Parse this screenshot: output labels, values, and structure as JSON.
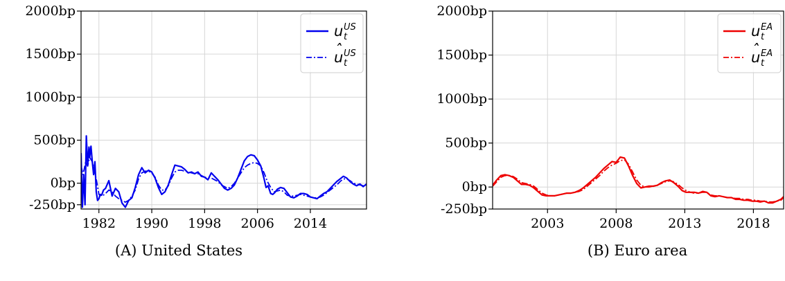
{
  "chart_data": [
    {
      "type": "line",
      "caption": "(A) United States",
      "ylim": [
        -300,
        2000
      ],
      "yticks": [
        2000,
        1500,
        1000,
        500,
        0,
        -250
      ],
      "ytick_labels": [
        "2000bp",
        "1500bp",
        "1000bp",
        "500bp",
        "0bp",
        "-250bp"
      ],
      "xlim": [
        1979.3,
        2022.5
      ],
      "xticks": [
        1982,
        1990,
        1998,
        2006,
        2014
      ],
      "xtick_labels": [
        "1982",
        "1990",
        "1998",
        "2006",
        "2014"
      ],
      "grid": true,
      "legend_position": "top-right",
      "legend": [
        {
          "base": "u",
          "sup": "US",
          "sub": "t",
          "hat": false,
          "style": "solid"
        },
        {
          "base": "u",
          "sup": "US",
          "sub": "t",
          "hat": true,
          "style": "dashdot"
        }
      ],
      "color": "#0000ee",
      "series": [
        {
          "style": "solid",
          "x": [
            1979.3,
            1979.5,
            1979.7,
            1979.9,
            1980.1,
            1980.3,
            1980.5,
            1980.6,
            1980.8,
            1981.0,
            1981.2,
            1981.4,
            1981.6,
            1981.8,
            1982.0,
            1982.2,
            1982.4,
            1982.7,
            1983.0,
            1983.5,
            1984.0,
            1984.5,
            1985.0,
            1985.5,
            1986.0,
            1986.5,
            1987.0,
            1987.5,
            1988.0,
            1988.5,
            1989.0,
            1989.5,
            1990.0,
            1990.5,
            1991.0,
            1991.5,
            1992.0,
            1992.5,
            1993.0,
            1993.5,
            1994.0,
            1994.5,
            1995.0,
            1995.5,
            1996.0,
            1996.5,
            1997.0,
            1997.5,
            1998.0,
            1998.5,
            1999.0,
            1999.5,
            2000.0,
            2000.5,
            2001.0,
            2001.5,
            2002.0,
            2002.5,
            2003.0,
            2003.5,
            2004.0,
            2004.5,
            2005.0,
            2005.5,
            2006.0,
            2006.5,
            2007.0,
            2007.3,
            2007.6,
            2008.0,
            2008.3,
            2008.6,
            2009.0,
            2009.5,
            2010.0,
            2010.5,
            2011.0,
            2011.5,
            2012.0,
            2012.5,
            2013.0,
            2013.5,
            2014.0,
            2014.5,
            2015.0,
            2015.5,
            2016.0,
            2016.5,
            2017.0,
            2017.5,
            2018.0,
            2018.5,
            2019.0,
            2019.5,
            2020.0,
            2020.5,
            2021.0,
            2021.5,
            2022.0,
            2022.5
          ],
          "y": [
            350,
            -280,
            100,
            -250,
            550,
            200,
            420,
            300,
            430,
            250,
            100,
            250,
            -100,
            -200,
            -180,
            -130,
            -140,
            -80,
            -60,
            30,
            -150,
            -60,
            -100,
            -230,
            -280,
            -200,
            -170,
            -50,
            100,
            180,
            120,
            150,
            130,
            60,
            -50,
            -130,
            -100,
            -20,
            100,
            210,
            200,
            190,
            160,
            120,
            130,
            110,
            130,
            80,
            70,
            40,
            120,
            80,
            40,
            -10,
            -60,
            -80,
            -60,
            -20,
            60,
            160,
            260,
            310,
            330,
            320,
            270,
            200,
            50,
            -50,
            -30,
            -120,
            -130,
            -110,
            -70,
            -50,
            -60,
            -110,
            -160,
            -170,
            -150,
            -120,
            -120,
            -130,
            -160,
            -170,
            -180,
            -150,
            -120,
            -100,
            -60,
            -20,
            20,
            50,
            80,
            60,
            20,
            -10,
            -30,
            -10,
            -40,
            -10
          ],
          "comment": ""
        },
        {
          "style": "dashdot",
          "x": [
            1979.3,
            1979.6,
            1980.0,
            1980.3,
            1980.6,
            1981.0,
            1981.3,
            1981.6,
            1982.0,
            1982.5,
            1983.0,
            1983.5,
            1984.0,
            1984.5,
            1985.0,
            1985.5,
            1986.0,
            1986.5,
            1987.0,
            1987.5,
            1988.0,
            1988.5,
            1989.0,
            1989.5,
            1990.0,
            1990.5,
            1991.0,
            1991.5,
            1992.0,
            1992.5,
            1993.0,
            1993.5,
            1994.0,
            1994.5,
            1995.0,
            1995.5,
            1996.0,
            1996.5,
            1997.0,
            1997.5,
            1998.0,
            1998.5,
            1999.0,
            1999.5,
            2000.0,
            2000.5,
            2001.0,
            2001.5,
            2002.0,
            2002.5,
            2003.0,
            2003.5,
            2004.0,
            2004.5,
            2005.0,
            2005.5,
            2006.0,
            2006.5,
            2007.0,
            2007.5,
            2008.0,
            2008.5,
            2009.0,
            2009.5,
            2010.0,
            2010.5,
            2011.0,
            2011.5,
            2012.0,
            2012.5,
            2013.0,
            2013.5,
            2014.0,
            2014.5,
            2015.0,
            2015.5,
            2016.0,
            2016.5,
            2017.0,
            2017.5,
            2018.0,
            2018.5,
            2019.0,
            2019.5,
            2020.0,
            2020.5,
            2021.0,
            2021.5,
            2022.0,
            2022.5
          ],
          "y": [
            200,
            100,
            250,
            200,
            300,
            250,
            150,
            50,
            -130,
            -150,
            -120,
            -80,
            -100,
            -150,
            -180,
            -200,
            -220,
            -200,
            -150,
            -80,
            50,
            120,
            140,
            140,
            120,
            70,
            -20,
            -80,
            -80,
            -30,
            60,
            130,
            150,
            150,
            140,
            130,
            120,
            110,
            110,
            90,
            70,
            60,
            60,
            40,
            20,
            -20,
            -40,
            -60,
            -40,
            0,
            60,
            120,
            180,
            210,
            230,
            240,
            230,
            200,
            120,
            20,
            -50,
            -100,
            -90,
            -80,
            -100,
            -140,
            -150,
            -150,
            -140,
            -130,
            -140,
            -150,
            -160,
            -170,
            -170,
            -160,
            -140,
            -110,
            -80,
            -50,
            -20,
            20,
            50,
            50,
            30,
            0,
            -10,
            -20,
            -30,
            -20
          ],
          "comment": ""
        }
      ]
    },
    {
      "type": "line",
      "caption": "(B) Euro area",
      "ylim": [
        -250,
        2000
      ],
      "yticks": [
        2000,
        1500,
        1000,
        500,
        0,
        -250
      ],
      "ytick_labels": [
        "2000bp",
        "1500bp",
        "1000bp",
        "500bp",
        "0bp",
        "-250bp"
      ],
      "xlim": [
        1999.0,
        2020.2
      ],
      "xticks": [
        2003,
        2008,
        2013,
        2018
      ],
      "xtick_labels": [
        "2003",
        "2008",
        "2013",
        "2018"
      ],
      "grid": true,
      "legend_position": "top-right",
      "legend": [
        {
          "base": "u",
          "sup": "EA",
          "sub": "t",
          "hat": false,
          "style": "solid"
        },
        {
          "base": "u",
          "sup": "EA",
          "sub": "t",
          "hat": true,
          "style": "dashdot"
        }
      ],
      "color": "#ee0000",
      "series": [
        {
          "style": "solid",
          "x": [
            1999.0,
            1999.3,
            1999.6,
            1999.9,
            2000.2,
            2000.5,
            2000.8,
            2001.1,
            2001.4,
            2001.7,
            2002.0,
            2002.3,
            2002.6,
            2002.9,
            2003.2,
            2003.5,
            2003.8,
            2004.1,
            2004.4,
            2004.7,
            2005.0,
            2005.3,
            2005.6,
            2005.9,
            2006.2,
            2006.5,
            2006.8,
            2007.1,
            2007.4,
            2007.7,
            2008.0,
            2008.3,
            2008.6,
            2008.9,
            2009.2,
            2009.5,
            2009.8,
            2010.1,
            2010.4,
            2010.7,
            2011.0,
            2011.3,
            2011.6,
            2011.9,
            2012.2,
            2012.5,
            2012.8,
            2013.1,
            2013.4,
            2013.7,
            2014.0,
            2014.3,
            2014.6,
            2014.9,
            2015.2,
            2015.5,
            2015.8,
            2016.1,
            2016.4,
            2016.7,
            2017.0,
            2017.3,
            2017.6,
            2017.9,
            2018.2,
            2018.5,
            2018.8,
            2019.1,
            2019.4,
            2019.7,
            2020.0,
            2020.2
          ],
          "y": [
            20,
            80,
            130,
            140,
            130,
            110,
            70,
            30,
            30,
            20,
            -10,
            -50,
            -90,
            -100,
            -100,
            -100,
            -90,
            -80,
            -70,
            -70,
            -60,
            -40,
            -10,
            30,
            70,
            110,
            160,
            210,
            250,
            290,
            280,
            340,
            330,
            240,
            130,
            40,
            -10,
            0,
            10,
            10,
            20,
            50,
            70,
            80,
            50,
            10,
            -40,
            -60,
            -60,
            -60,
            -70,
            -50,
            -60,
            -100,
            -110,
            -100,
            -110,
            -120,
            -120,
            -140,
            -140,
            -150,
            -150,
            -160,
            -160,
            -170,
            -160,
            -180,
            -180,
            -160,
            -140,
            -110
          ],
          "comment": ""
        },
        {
          "style": "dashdot",
          "x": [
            1999.0,
            1999.3,
            1999.6,
            1999.9,
            2000.2,
            2000.5,
            2000.8,
            2001.1,
            2001.4,
            2001.7,
            2002.0,
            2002.3,
            2002.6,
            2002.9,
            2003.2,
            2003.5,
            2003.8,
            2004.1,
            2004.4,
            2004.7,
            2005.0,
            2005.3,
            2005.6,
            2005.9,
            2006.2,
            2006.5,
            2006.8,
            2007.1,
            2007.4,
            2007.7,
            2008.0,
            2008.3,
            2008.6,
            2008.9,
            2009.2,
            2009.5,
            2009.8,
            2010.1,
            2010.4,
            2010.7,
            2011.0,
            2011.3,
            2011.6,
            2011.9,
            2012.2,
            2012.5,
            2012.8,
            2013.1,
            2013.4,
            2013.7,
            2014.0,
            2014.3,
            2014.6,
            2014.9,
            2015.2,
            2015.5,
            2015.8,
            2016.1,
            2016.4,
            2016.7,
            2017.0,
            2017.3,
            2017.6,
            2017.9,
            2018.2,
            2018.5,
            2018.8,
            2019.1,
            2019.4,
            2019.7,
            2020.0,
            2020.2
          ],
          "y": [
            10,
            60,
            110,
            130,
            130,
            120,
            90,
            50,
            40,
            30,
            10,
            -30,
            -70,
            -90,
            -100,
            -100,
            -90,
            -80,
            -70,
            -70,
            -60,
            -50,
            -30,
            10,
            50,
            90,
            130,
            180,
            220,
            250,
            270,
            300,
            310,
            260,
            170,
            80,
            20,
            0,
            0,
            10,
            20,
            40,
            60,
            70,
            60,
            30,
            -10,
            -40,
            -60,
            -70,
            -70,
            -60,
            -60,
            -90,
            -100,
            -100,
            -110,
            -120,
            -120,
            -130,
            -130,
            -140,
            -140,
            -150,
            -150,
            -160,
            -160,
            -170,
            -170,
            -160,
            -150,
            -120
          ],
          "comment": ""
        }
      ]
    }
  ]
}
